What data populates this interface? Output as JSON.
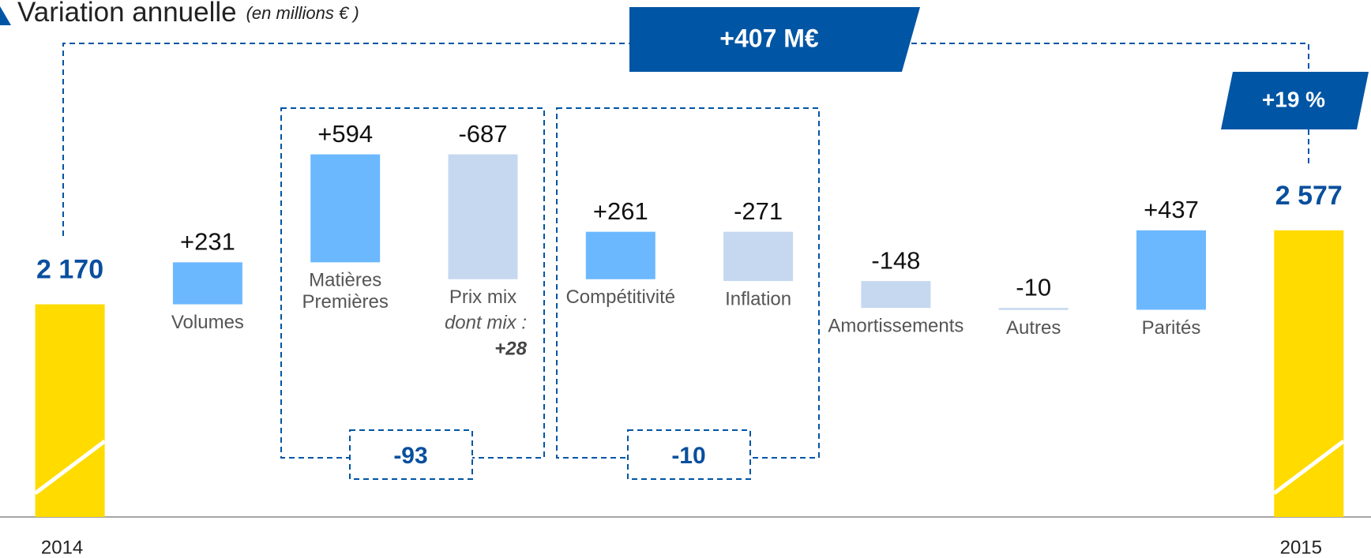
{
  "chart_data": {
    "type": "waterfall",
    "title": "Variation annuelle",
    "subtitle": "(en millions € )",
    "categories": [
      "2014",
      "Volumes",
      "Matières\nPremières",
      "Prix mix",
      "Compétitivité",
      "Inflation",
      "Amortissements",
      "Autres",
      "Parités",
      "2015"
    ],
    "measure": [
      "absolute",
      "relative",
      "relative",
      "relative",
      "relative",
      "relative",
      "relative",
      "relative",
      "relative",
      "absolute"
    ],
    "values": [
      2170,
      231,
      594,
      -687,
      261,
      -271,
      -148,
      -10,
      437,
      2577
    ],
    "value_labels": [
      "2 170",
      "+231",
      "+594",
      "-687",
      "+261",
      "-271",
      "-148",
      "-10",
      "+437",
      "2 577"
    ],
    "colors": {
      "total": "#ffdb00",
      "increase": "#6cb8ff",
      "decrease": "#c6d8f0"
    },
    "ylim": [
      1000,
      2700
    ],
    "annotations": [
      "dont mix :",
      "+28"
    ],
    "groups": [
      -93,
      -10
    ],
    "total_change": {
      "value": 407,
      "label": "+407 M€"
    },
    "pct_change": {
      "value": 19,
      "label": "+19 %"
    }
  }
}
